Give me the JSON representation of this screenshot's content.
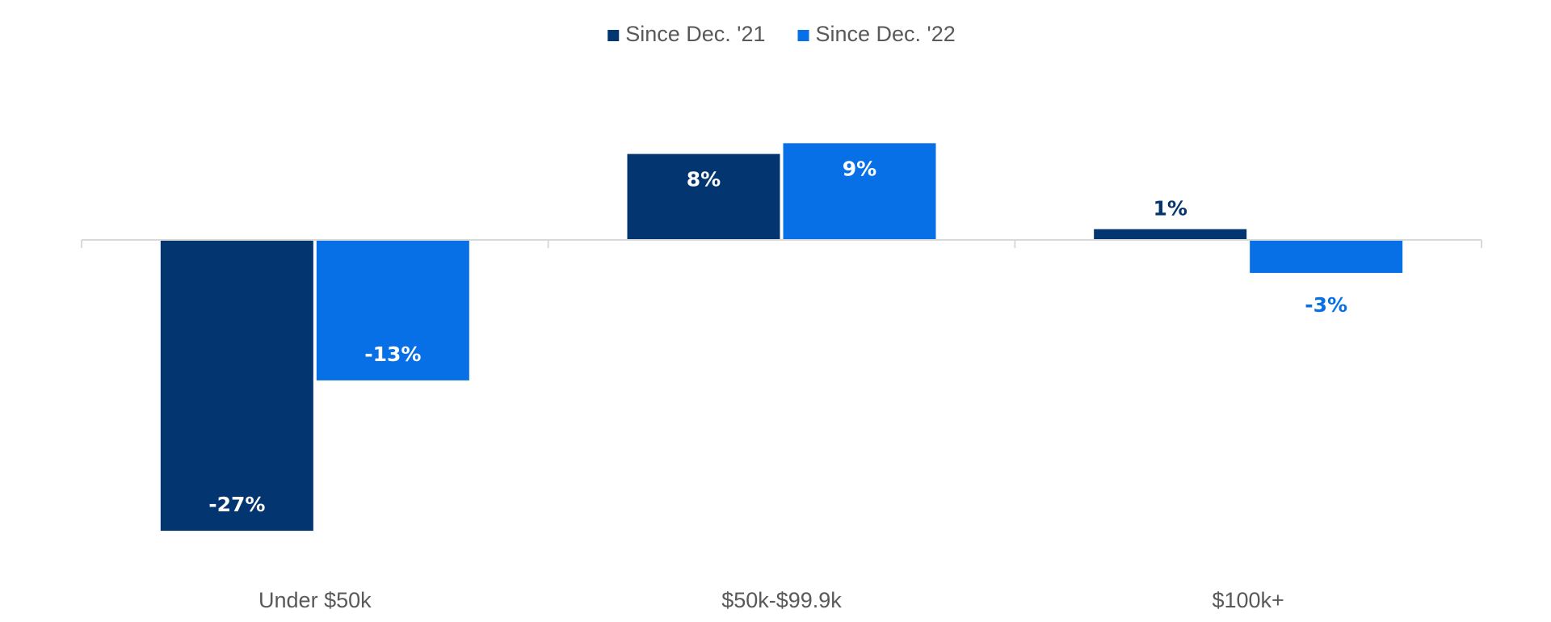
{
  "chart_data": {
    "type": "bar",
    "categories": [
      "Under $50k",
      "$50k-$99.9k",
      "$100k+"
    ],
    "series": [
      {
        "name": "Since Dec. '21",
        "color": "#033570",
        "values": [
          -27,
          8,
          1
        ],
        "labels": [
          "-27%",
          "8%",
          "1%"
        ]
      },
      {
        "name": "Since Dec. '22",
        "color": "#0870E6",
        "values": [
          -13,
          9,
          -3
        ],
        "labels": [
          "-13%",
          "9%",
          "-3%"
        ]
      }
    ],
    "ylim": [
      -30,
      10
    ],
    "legend_position": "top-center",
    "grid": false,
    "title": "",
    "xlabel": "",
    "ylabel": ""
  }
}
